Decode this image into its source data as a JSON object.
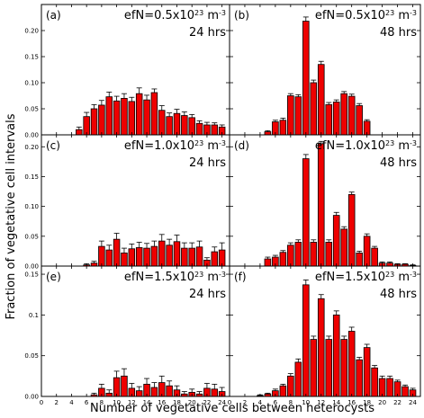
{
  "figure": {
    "ylabel": "Fraction of vegetative cell intervals",
    "xlabel": "Number of vegetative cells between heterocysts"
  },
  "colors": {
    "bar": "#ee0000",
    "edge": "#000000"
  },
  "chart_data": [
    {
      "type": "bar",
      "panel": "(a)",
      "efn_prefix": "efN=0.5x10",
      "efn_exp": "23",
      "efn_unit": " m",
      "efn_unit_exp": "-3",
      "time": "24 hrs",
      "x": [
        5,
        6,
        7,
        8,
        9,
        10,
        11,
        12,
        13,
        14,
        15,
        16,
        17,
        18,
        19,
        20,
        21,
        22,
        23,
        24
      ],
      "values": [
        0.01,
        0.035,
        0.05,
        0.057,
        0.073,
        0.065,
        0.07,
        0.064,
        0.079,
        0.067,
        0.081,
        0.047,
        0.035,
        0.041,
        0.037,
        0.033,
        0.022,
        0.019,
        0.019,
        0.015
      ],
      "errors": [
        0.005,
        0.008,
        0.008,
        0.009,
        0.009,
        0.009,
        0.009,
        0.008,
        0.011,
        0.009,
        0.007,
        0.009,
        0.007,
        0.008,
        0.007,
        0.006,
        0.005,
        0.005,
        0.004,
        0.004
      ],
      "xlim": [
        0,
        25
      ],
      "ylim": [
        0,
        0.25
      ],
      "yticks": [
        0,
        0.05,
        0.1,
        0.15,
        0.2
      ],
      "ytick_labels": [
        "0.00",
        "0.05",
        "0.10",
        "0.15",
        "0.20"
      ]
    },
    {
      "type": "bar",
      "panel": "(b)",
      "efn_prefix": "efN=0.5x10",
      "efn_exp": "23",
      "efn_unit": " m",
      "efn_unit_exp": "-3",
      "time": "48 hrs",
      "x": [
        5,
        6,
        7,
        8,
        9,
        10,
        11,
        12,
        13,
        14,
        15,
        16,
        17,
        18
      ],
      "values": [
        0.006,
        0.025,
        0.028,
        0.075,
        0.073,
        0.218,
        0.1,
        0.135,
        0.058,
        0.063,
        0.079,
        0.074,
        0.056,
        0.026
      ],
      "errors": [
        0.002,
        0.003,
        0.004,
        0.004,
        0.004,
        0.008,
        0.005,
        0.006,
        0.004,
        0.004,
        0.004,
        0.004,
        0.004,
        0.003
      ],
      "xlim": [
        0,
        25
      ],
      "ylim": [
        0,
        0.25
      ],
      "yticks": [
        0,
        0.05,
        0.1,
        0.15,
        0.2
      ],
      "ytick_labels": [
        "",
        "",
        "",
        "",
        ""
      ]
    },
    {
      "type": "bar",
      "panel": "(c)",
      "efn_prefix": "efN=1.0x10",
      "efn_exp": "23",
      "efn_unit": " m",
      "efn_unit_exp": "-3",
      "time": "24 hrs",
      "x": [
        6,
        7,
        8,
        9,
        10,
        11,
        12,
        13,
        14,
        15,
        16,
        17,
        18,
        19,
        20,
        21,
        22,
        23,
        24
      ],
      "values": [
        0.002,
        0.005,
        0.033,
        0.027,
        0.045,
        0.022,
        0.029,
        0.031,
        0.03,
        0.033,
        0.042,
        0.035,
        0.041,
        0.03,
        0.03,
        0.032,
        0.01,
        0.024,
        0.027
      ],
      "errors": [
        0.002,
        0.003,
        0.009,
        0.008,
        0.01,
        0.008,
        0.008,
        0.009,
        0.008,
        0.009,
        0.011,
        0.01,
        0.011,
        0.009,
        0.009,
        0.01,
        0.004,
        0.008,
        0.012
      ],
      "xlim": [
        0,
        25
      ],
      "ylim": [
        0,
        0.22
      ],
      "yticks": [
        0,
        0.05,
        0.1,
        0.15,
        0.2
      ],
      "ytick_labels": [
        "0.00",
        "0.05",
        "0.10",
        "0.15",
        "0.20"
      ]
    },
    {
      "type": "bar",
      "panel": "(d)",
      "efn_prefix": "efN=1.0x10",
      "efn_exp": "23",
      "efn_unit": " m",
      "efn_unit_exp": "-3",
      "time": "48 hrs",
      "x": [
        5,
        6,
        7,
        8,
        9,
        10,
        11,
        12,
        13,
        14,
        15,
        16,
        17,
        18,
        19,
        20,
        21,
        22,
        23,
        24
      ],
      "values": [
        0.012,
        0.015,
        0.023,
        0.035,
        0.04,
        0.18,
        0.04,
        0.205,
        0.04,
        0.085,
        0.062,
        0.12,
        0.022,
        0.05,
        0.03,
        0.005,
        0.005,
        0.003,
        0.003,
        0.001
      ],
      "errors": [
        0.003,
        0.003,
        0.003,
        0.004,
        0.004,
        0.007,
        0.004,
        0.004,
        0.004,
        0.005,
        0.004,
        0.004,
        0.003,
        0.004,
        0.003,
        0.002,
        0.002,
        0.001,
        0.001,
        0.001
      ],
      "xlim": [
        0,
        25
      ],
      "ylim": [
        0,
        0.22
      ],
      "yticks": [
        0,
        0.05,
        0.1,
        0.15,
        0.2
      ],
      "ytick_labels": [
        "",
        "",
        "",
        "",
        ""
      ]
    },
    {
      "type": "bar",
      "panel": "(e)",
      "efn_prefix": "efN=1.5x10",
      "efn_exp": "23",
      "efn_unit": " m",
      "efn_unit_exp": "-3",
      "time": "24 hrs",
      "x": [
        7,
        8,
        9,
        10,
        11,
        12,
        13,
        14,
        15,
        16,
        17,
        18,
        19,
        20,
        21,
        22,
        23,
        24
      ],
      "values": [
        0.002,
        0.01,
        0.004,
        0.023,
        0.025,
        0.01,
        0.007,
        0.015,
        0.011,
        0.017,
        0.013,
        0.008,
        0.003,
        0.005,
        0.003,
        0.01,
        0.009,
        0.006
      ],
      "errors": [
        0.002,
        0.005,
        0.004,
        0.008,
        0.009,
        0.006,
        0.005,
        0.007,
        0.006,
        0.008,
        0.006,
        0.005,
        0.003,
        0.004,
        0.003,
        0.006,
        0.006,
        0.005
      ],
      "xlim": [
        0,
        25
      ],
      "ylim": [
        0,
        0.16
      ],
      "yticks": [
        0,
        0.05,
        0.1,
        0.15
      ],
      "ytick_labels": [
        "0.00",
        "0.05",
        "0.1",
        "0.15"
      ]
    },
    {
      "type": "bar",
      "panel": "(f)",
      "efn_prefix": "efN=1.5x10",
      "efn_exp": "23",
      "efn_unit": " m",
      "efn_unit_exp": "-3",
      "time": "48 hrs",
      "x": [
        4,
        5,
        6,
        7,
        8,
        9,
        10,
        11,
        12,
        13,
        14,
        15,
        16,
        17,
        18,
        19,
        20,
        21,
        22,
        23,
        24
      ],
      "values": [
        0.001,
        0.003,
        0.007,
        0.013,
        0.025,
        0.042,
        0.137,
        0.07,
        0.12,
        0.07,
        0.1,
        0.07,
        0.08,
        0.045,
        0.06,
        0.035,
        0.022,
        0.022,
        0.018,
        0.012,
        0.008
      ],
      "errors": [
        0.001,
        0.001,
        0.002,
        0.002,
        0.003,
        0.004,
        0.006,
        0.004,
        0.005,
        0.004,
        0.005,
        0.004,
        0.005,
        0.003,
        0.004,
        0.003,
        0.003,
        0.003,
        0.002,
        0.002,
        0.002
      ],
      "xlim": [
        0,
        25
      ],
      "ylim": [
        0,
        0.16
      ],
      "yticks": [
        0,
        0.05,
        0.1,
        0.15
      ],
      "ytick_labels": [
        "",
        "",
        "",
        "",
        ""
      ]
    }
  ],
  "xticks": [
    0,
    2,
    4,
    6,
    8,
    10,
    12,
    14,
    16,
    18,
    20,
    22,
    24
  ],
  "xtick_labels": [
    "0",
    "2",
    "4",
    "6",
    "8",
    "10",
    "12",
    "14",
    "16",
    "18",
    "20",
    "22",
    "24"
  ]
}
